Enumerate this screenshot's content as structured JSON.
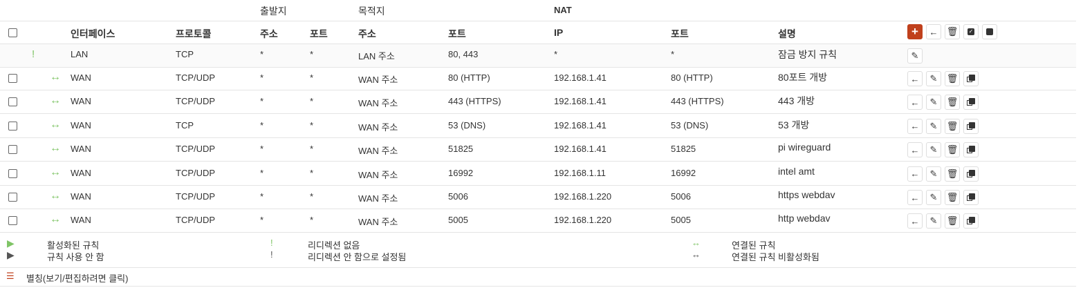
{
  "header": {
    "source": "출발지",
    "destination": "목적지",
    "nat": "NAT",
    "interface": "인터페이스",
    "protocol": "프로토콜",
    "src_addr": "주소",
    "src_port": "포트",
    "dst_addr": "주소",
    "dst_port": "포트",
    "nat_ip": "IP",
    "nat_port": "포트",
    "description": "설명"
  },
  "lan_rule": {
    "icon": "exclamation-icon",
    "interface": "LAN",
    "protocol": "TCP",
    "src_addr": "*",
    "src_port": "*",
    "dst_addr": "LAN 주소",
    "dst_port": "80, 443",
    "nat_ip": "*",
    "nat_port": "*",
    "description": "잠금 방지 규칙"
  },
  "rules": [
    {
      "interface": "WAN",
      "protocol": "TCP/UDP",
      "src_addr": "*",
      "src_port": "*",
      "dst_addr": "WAN 주소",
      "dst_port": "80 (HTTP)",
      "nat_ip": "192.168.1.41",
      "nat_port": "80 (HTTP)",
      "description": "80포트 개방"
    },
    {
      "interface": "WAN",
      "protocol": "TCP/UDP",
      "src_addr": "*",
      "src_port": "*",
      "dst_addr": "WAN 주소",
      "dst_port": "443 (HTTPS)",
      "nat_ip": "192.168.1.41",
      "nat_port": "443 (HTTPS)",
      "description": "443 개방"
    },
    {
      "interface": "WAN",
      "protocol": "TCP",
      "src_addr": "*",
      "src_port": "*",
      "dst_addr": "WAN 주소",
      "dst_port": "53 (DNS)",
      "nat_ip": "192.168.1.41",
      "nat_port": "53 (DNS)",
      "description": "53 개방"
    },
    {
      "interface": "WAN",
      "protocol": "TCP/UDP",
      "src_addr": "*",
      "src_port": "*",
      "dst_addr": "WAN 주소",
      "dst_port": "51825",
      "nat_ip": "192.168.1.41",
      "nat_port": "51825",
      "description": "pi wireguard"
    },
    {
      "interface": "WAN",
      "protocol": "TCP/UDP",
      "src_addr": "*",
      "src_port": "*",
      "dst_addr": "WAN 주소",
      "dst_port": "16992",
      "nat_ip": "192.168.1.11",
      "nat_port": "16992",
      "description": "intel amt"
    },
    {
      "interface": "WAN",
      "protocol": "TCP/UDP",
      "src_addr": "*",
      "src_port": "*",
      "dst_addr": "WAN 주소",
      "dst_port": "5006",
      "nat_ip": "192.168.1.220",
      "nat_port": "5006",
      "description": "https webdav"
    },
    {
      "interface": "WAN",
      "protocol": "TCP/UDP",
      "src_addr": "*",
      "src_port": "*",
      "dst_addr": "WAN 주소",
      "dst_port": "5005",
      "nat_ip": "192.168.1.220",
      "nat_port": "5005",
      "description": "http webdav"
    }
  ],
  "legend": {
    "enabled": "활성화된 규칙",
    "disabled": "규칙 사용 안 함",
    "no_redirect": "리디렉션 없음",
    "no_redirect_disabled": "리디렉션 안 함으로 설정됨",
    "linked": "연결된 규칙",
    "linked_disabled": "연결된 규칙 비활성화됨"
  },
  "alias_link": "별칭(보기/편집하려면 클릭)",
  "colors": {
    "accent": "#c0401c",
    "green": "#7fc466"
  }
}
